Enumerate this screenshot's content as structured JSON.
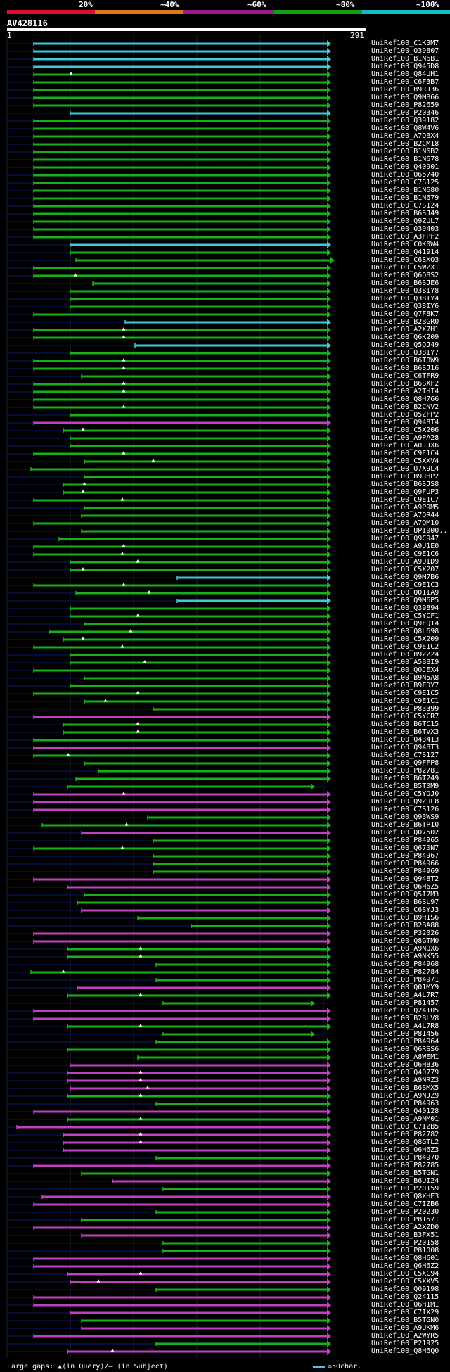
{
  "legend": {
    "colors": [
      "#e0102a",
      "#e07a10",
      "#9c1a8a",
      "#10a010",
      "#10c0c0"
    ],
    "labels": [
      "20%",
      "~40%",
      "~60%",
      "~80%",
      "~100%"
    ]
  },
  "query": {
    "id": "AV428116",
    "start": "1",
    "end": "291"
  },
  "footer": {
    "gaps": "Large gaps: ▲(in Query)/– (in Subject)",
    "scale": "=50char."
  },
  "rows": [
    {
      "label": "UniRef100_C1K3M7",
      "c": "cyan",
      "s": 48,
      "e": 465
    },
    {
      "label": "UniRef100_Q39807",
      "c": "cyan",
      "s": 48,
      "e": 465
    },
    {
      "label": "UniRef100_B1N6B1",
      "c": "cyan",
      "s": 48,
      "e": 465
    },
    {
      "label": "UniRef100_Q945D8",
      "c": "cyan",
      "s": 48,
      "e": 465
    },
    {
      "label": "UniRef100_Q84UH1",
      "c": "green",
      "s": 48,
      "e": 465,
      "t": 101
    },
    {
      "label": "UniRef100_C6F3B7",
      "c": "green",
      "s": 48,
      "e": 465
    },
    {
      "label": "UniRef100_B9RJ36",
      "c": "green",
      "s": 48,
      "e": 465
    },
    {
      "label": "UniRef100_Q9MB66",
      "c": "green",
      "s": 48,
      "e": 465
    },
    {
      "label": "UniRef100_P82659",
      "c": "green",
      "s": 48,
      "e": 465
    },
    {
      "label": "UniRef100_P20346",
      "c": "cyan",
      "s": 100,
      "e": 465
    },
    {
      "label": "UniRef100_Q39182",
      "c": "green",
      "s": 48,
      "e": 465
    },
    {
      "label": "UniRef100_Q8W4V6",
      "c": "green",
      "s": 48,
      "e": 465
    },
    {
      "label": "UniRef100_A7QBX4",
      "c": "green",
      "s": 48,
      "e": 465
    },
    {
      "label": "UniRef100_B2CM18",
      "c": "green",
      "s": 48,
      "e": 465
    },
    {
      "label": "UniRef100_B1N6B2",
      "c": "green",
      "s": 48,
      "e": 465
    },
    {
      "label": "UniRef100_B1N678",
      "c": "green",
      "s": 48,
      "e": 465
    },
    {
      "label": "UniRef100_Q40901",
      "c": "green",
      "s": 48,
      "e": 465
    },
    {
      "label": "UniRef100_O65740",
      "c": "green",
      "s": 48,
      "e": 465
    },
    {
      "label": "UniRef100_C7S125",
      "c": "green",
      "s": 48,
      "e": 465
    },
    {
      "label": "UniRef100_B1N680",
      "c": "green",
      "s": 48,
      "e": 465
    },
    {
      "label": "UniRef100_B1N679",
      "c": "green",
      "s": 48,
      "e": 465
    },
    {
      "label": "UniRef100_C7S124",
      "c": "green",
      "s": 48,
      "e": 465
    },
    {
      "label": "UniRef100_B6SJ49",
      "c": "green",
      "s": 48,
      "e": 465
    },
    {
      "label": "UniRef100_Q9ZUL7",
      "c": "green",
      "s": 48,
      "e": 465
    },
    {
      "label": "UniRef100_Q39403",
      "c": "green",
      "s": 48,
      "e": 465
    },
    {
      "label": "UniRef100_A3FPF2",
      "c": "green",
      "s": 48,
      "e": 465
    },
    {
      "label": "UniRef100_C0K0W4",
      "c": "cyan",
      "s": 100,
      "e": 465
    },
    {
      "label": "UniRef100_Q41914",
      "c": "green",
      "s": 100,
      "e": 465
    },
    {
      "label": "UniRef100_C6SXQ3",
      "c": "green",
      "s": 108,
      "e": 470
    },
    {
      "label": "UniRef100_C5WZX1",
      "c": "green",
      "s": 48,
      "e": 465
    },
    {
      "label": "UniRef100_Q6Q8S2",
      "c": "green",
      "s": 48,
      "e": 465,
      "t": 107
    },
    {
      "label": "UniRef100_B6SJE6",
      "c": "green",
      "s": 132,
      "e": 465
    },
    {
      "label": "UniRef100_Q38IY8",
      "c": "green",
      "s": 100,
      "e": 465
    },
    {
      "label": "UniRef100_Q38IY4",
      "c": "green",
      "s": 100,
      "e": 465
    },
    {
      "label": "UniRef100_Q38IY6",
      "c": "green",
      "s": 100,
      "e": 465
    },
    {
      "label": "UniRef100_Q7F8K7",
      "c": "green",
      "s": 48,
      "e": 465
    },
    {
      "label": "UniRef100_B2BGR0",
      "c": "cyan",
      "s": 178,
      "e": 465
    },
    {
      "label": "UniRef100_A2X7H1",
      "c": "green",
      "s": 48,
      "e": 465,
      "t": 176
    },
    {
      "label": "UniRef100_Q6K209",
      "c": "green",
      "s": 48,
      "e": 465,
      "t": 176
    },
    {
      "label": "UniRef100_Q5QJ49",
      "c": "cyan",
      "s": 192,
      "e": 465
    },
    {
      "label": "UniRef100_Q38IY7",
      "c": "green",
      "s": 100,
      "e": 465
    },
    {
      "label": "UniRef100_B6T0W9",
      "c": "green",
      "s": 48,
      "e": 465,
      "t": 176
    },
    {
      "label": "UniRef100_B6SJ16",
      "c": "green",
      "s": 48,
      "e": 465,
      "t": 176
    },
    {
      "label": "UniRef100_C6TFR9",
      "c": "green",
      "s": 116,
      "e": 465
    },
    {
      "label": "UniRef100_B6SXF2",
      "c": "green",
      "s": 48,
      "e": 465,
      "t": 176
    },
    {
      "label": "UniRef100_A2THI4",
      "c": "green",
      "s": 48,
      "e": 465,
      "t": 176
    },
    {
      "label": "UniRef100_Q8H766",
      "c": "green",
      "s": 48,
      "e": 465
    },
    {
      "label": "UniRef100_B2CNV2",
      "c": "green",
      "s": 48,
      "e": 465,
      "t": 176
    },
    {
      "label": "UniRef100_Q5ZFP2",
      "c": "green",
      "s": 100,
      "e": 465
    },
    {
      "label": "UniRef100_Q948T4",
      "c": "magenta",
      "s": 48,
      "e": 465
    },
    {
      "label": "UniRef100_C5X206",
      "c": "green",
      "s": 90,
      "e": 465,
      "t": 118
    },
    {
      "label": "UniRef100_A9PA28",
      "c": "green",
      "s": 100,
      "e": 465
    },
    {
      "label": "UniRef100_A0JJX6",
      "c": "green",
      "s": 100,
      "e": 465
    },
    {
      "label": "UniRef100_C9E1C4",
      "c": "green",
      "s": 48,
      "e": 465,
      "t": 176
    },
    {
      "label": "UniRef100_C5XXV4",
      "c": "green",
      "s": 120,
      "e": 465,
      "t": 218
    },
    {
      "label": "UniRef100_Q7X9L4",
      "c": "green",
      "s": 44,
      "e": 465
    },
    {
      "label": "UniRef100_B9RHP2",
      "c": "green",
      "s": 120,
      "e": 465
    },
    {
      "label": "UniRef100_B6SJS8",
      "c": "green",
      "s": 90,
      "e": 465,
      "t": 120
    },
    {
      "label": "UniRef100_Q9FUP3",
      "c": "green",
      "s": 90,
      "e": 465,
      "t": 118
    },
    {
      "label": "UniRef100_C9E1C7",
      "c": "green",
      "s": 48,
      "e": 465,
      "t": 174
    },
    {
      "label": "UniRef100_A9P9M5",
      "c": "green",
      "s": 120,
      "e": 465
    },
    {
      "label": "UniRef100_A7QR44",
      "c": "green",
      "s": 116,
      "e": 465
    },
    {
      "label": "UniRef100_A7QM10",
      "c": "green",
      "s": 48,
      "e": 465
    },
    {
      "label": "UniRef100_UPI000..",
      "c": "green",
      "s": 116,
      "e": 465
    },
    {
      "label": "UniRef100_Q9C947",
      "c": "green",
      "s": 84,
      "e": 465
    },
    {
      "label": "UniRef100_A9U1E0",
      "c": "green",
      "s": 48,
      "e": 465,
      "t": 176
    },
    {
      "label": "UniRef100_C9E1C6",
      "c": "green",
      "s": 48,
      "e": 465,
      "t": 174
    },
    {
      "label": "UniRef100_A9UID9",
      "c": "green",
      "s": 100,
      "e": 465,
      "t": 196
    },
    {
      "label": "UniRef100_C5X207",
      "c": "green",
      "s": 100,
      "e": 465,
      "t": 118
    },
    {
      "label": "UniRef100_Q9M7B6",
      "c": "cyan",
      "s": 252,
      "e": 465
    },
    {
      "label": "UniRef100_C9E1C3",
      "c": "green",
      "s": 48,
      "e": 465,
      "t": 176
    },
    {
      "label": "UniRef100_Q01IA9",
      "c": "green",
      "s": 108,
      "e": 465,
      "t": 212
    },
    {
      "label": "UniRef100_Q9M6P5",
      "c": "cyan",
      "s": 252,
      "e": 465
    },
    {
      "label": "UniRef100_Q39894",
      "c": "green",
      "s": 100,
      "e": 465
    },
    {
      "label": "UniRef100_C5YCF1",
      "c": "green",
      "s": 100,
      "e": 465,
      "t": 196
    },
    {
      "label": "UniRef100_Q9FQ14",
      "c": "green",
      "s": 120,
      "e": 465
    },
    {
      "label": "UniRef100_Q8L698",
      "c": "green",
      "s": 70,
      "e": 465,
      "t": 186
    },
    {
      "label": "UniRef100_C5X209",
      "c": "green",
      "s": 90,
      "e": 465,
      "t": 118
    },
    {
      "label": "UniRef100_C9E1C2",
      "c": "green",
      "s": 48,
      "e": 465,
      "t": 174
    },
    {
      "label": "UniRef100_B9ZZ24",
      "c": "green",
      "s": 100,
      "e": 465
    },
    {
      "label": "UniRef100_A5BBI9",
      "c": "green",
      "s": 100,
      "e": 465,
      "t": 206
    },
    {
      "label": "UniRef100_Q0JEX4",
      "c": "green",
      "s": 48,
      "e": 465
    },
    {
      "label": "UniRef100_B9N5A8",
      "c": "green",
      "s": 120,
      "e": 465
    },
    {
      "label": "UniRef100_B9FDY7",
      "c": "green",
      "s": 100,
      "e": 465
    },
    {
      "label": "UniRef100_C9E1C5",
      "c": "green",
      "s": 48,
      "e": 465,
      "t": 196
    },
    {
      "label": "UniRef100_C9E1C1",
      "c": "green",
      "s": 120,
      "e": 465,
      "t": 150
    },
    {
      "label": "UniRef100_P83399",
      "c": "green",
      "s": 218,
      "e": 465
    },
    {
      "label": "UniRef100_C5YCR7",
      "c": "magenta",
      "s": 48,
      "e": 465
    },
    {
      "label": "UniRef100_B6TC15",
      "c": "green",
      "s": 90,
      "e": 465,
      "t": 196
    },
    {
      "label": "UniRef100_B6TVX3",
      "c": "green",
      "s": 90,
      "e": 465,
      "t": 196
    },
    {
      "label": "UniRef100_Q43413",
      "c": "green",
      "s": 48,
      "e": 465
    },
    {
      "label": "UniRef100_Q948T3",
      "c": "magenta",
      "s": 48,
      "e": 465
    },
    {
      "label": "UniRef100_C7S127",
      "c": "green",
      "s": 48,
      "e": 465,
      "t": 97
    },
    {
      "label": "UniRef100_Q9FFP8",
      "c": "green",
      "s": 120,
      "e": 465
    },
    {
      "label": "UniRef100_P82781",
      "c": "green",
      "s": 140,
      "e": 465
    },
    {
      "label": "UniRef100_B6T249",
      "c": "green",
      "s": 108,
      "e": 465
    },
    {
      "label": "UniRef100_B5T0M9",
      "c": "green",
      "s": 96,
      "e": 442
    },
    {
      "label": "UniRef100_C5YQJ0",
      "c": "magenta",
      "s": 48,
      "e": 465,
      "t": 176
    },
    {
      "label": "UniRef100_Q9ZUL8",
      "c": "magenta",
      "s": 48,
      "e": 465
    },
    {
      "label": "UniRef100_C7S126",
      "c": "magenta",
      "s": 48,
      "e": 465
    },
    {
      "label": "UniRef100_Q93WS9",
      "c": "green",
      "s": 210,
      "e": 465
    },
    {
      "label": "UniRef100_B6TP10",
      "c": "green",
      "s": 60,
      "e": 465,
      "t": 180
    },
    {
      "label": "UniRef100_Q07502",
      "c": "magenta",
      "s": 116,
      "e": 465
    },
    {
      "label": "UniRef100_P84965",
      "c": "green",
      "s": 218,
      "e": 465
    },
    {
      "label": "UniRef100_Q670N7",
      "c": "green",
      "s": 48,
      "e": 465,
      "t": 174
    },
    {
      "label": "UniRef100_P84967",
      "c": "green",
      "s": 218,
      "e": 465
    },
    {
      "label": "UniRef100_P84966",
      "c": "green",
      "s": 218,
      "e": 465
    },
    {
      "label": "UniRef100_P84969",
      "c": "green",
      "s": 218,
      "e": 465
    },
    {
      "label": "UniRef100_Q948T2",
      "c": "magenta",
      "s": 48,
      "e": 465
    },
    {
      "label": "UniRef100_Q6H6Z5",
      "c": "magenta",
      "s": 96,
      "e": 465
    },
    {
      "label": "UniRef100_Q5I7M3",
      "c": "green",
      "s": 120,
      "e": 465
    },
    {
      "label": "UniRef100_B6SL97",
      "c": "green",
      "s": 110,
      "e": 465
    },
    {
      "label": "UniRef100_C6SYJ3",
      "c": "magenta",
      "s": 116,
      "e": 465
    },
    {
      "label": "UniRef100_B9H1S6",
      "c": "green",
      "s": 196,
      "e": 465
    },
    {
      "label": "UniRef100_B2BA88",
      "c": "green",
      "s": 272,
      "e": 465
    },
    {
      "label": "UniRef100_P32026",
      "c": "magenta",
      "s": 48,
      "e": 465
    },
    {
      "label": "UniRef100_Q8GTM0",
      "c": "magenta",
      "s": 48,
      "e": 465
    },
    {
      "label": "UniRef100_A9NQX6",
      "c": "green",
      "s": 96,
      "e": 465,
      "t": 200
    },
    {
      "label": "UniRef100_A9NK55",
      "c": "green",
      "s": 96,
      "e": 465,
      "t": 200
    },
    {
      "label": "UniRef100_P84968",
      "c": "green",
      "s": 222,
      "e": 465
    },
    {
      "label": "UniRef100_P82784",
      "c": "green",
      "s": 44,
      "e": 465,
      "t": 90
    },
    {
      "label": "UniRef100_P84971",
      "c": "green",
      "s": 222,
      "e": 465
    },
    {
      "label": "UniRef100_Q01MY9",
      "c": "magenta",
      "s": 110,
      "e": 465
    },
    {
      "label": "UniRef100_A4L7R7",
      "c": "green",
      "s": 96,
      "e": 465,
      "t": 200
    },
    {
      "label": "UniRef100_P81457",
      "c": "green",
      "s": 232,
      "e": 442
    },
    {
      "label": "UniRef100_Q24105",
      "c": "magenta",
      "s": 48,
      "e": 465
    },
    {
      "label": "UniRef100_B2BLV8",
      "c": "magenta",
      "s": 48,
      "e": 465
    },
    {
      "label": "UniRef100_A4L7R8",
      "c": "green",
      "s": 96,
      "e": 465,
      "t": 200
    },
    {
      "label": "UniRef100_P81456",
      "c": "green",
      "s": 232,
      "e": 442
    },
    {
      "label": "UniRef100_P84964",
      "c": "green",
      "s": 222,
      "e": 465
    },
    {
      "label": "UniRef100_Q6RSS6",
      "c": "green",
      "s": 96,
      "e": 465
    },
    {
      "label": "UniRef100_A8WEM1",
      "c": "green",
      "s": 196,
      "e": 465
    },
    {
      "label": "UniRef100_Q6H836",
      "c": "magenta",
      "s": 100,
      "e": 465
    },
    {
      "label": "UniRef100_Q40779",
      "c": "magenta",
      "s": 96,
      "e": 465,
      "t": 200
    },
    {
      "label": "UniRef100_A9NRZ3",
      "c": "magenta",
      "s": 96,
      "e": 465,
      "t": 200
    },
    {
      "label": "UniRef100_B6SMX5",
      "c": "magenta",
      "s": 100,
      "e": 465,
      "t": 210
    },
    {
      "label": "UniRef100_A9NJZ9",
      "c": "green",
      "s": 96,
      "e": 465,
      "t": 200
    },
    {
      "label": "UniRef100_P84963",
      "c": "green",
      "s": 222,
      "e": 465
    },
    {
      "label": "UniRef100_Q40128",
      "c": "magenta",
      "s": 48,
      "e": 465
    },
    {
      "label": "UniRef100_A9NM01",
      "c": "green",
      "s": 96,
      "e": 465,
      "t": 200
    },
    {
      "label": "UniRef100_C7IZB5",
      "c": "magenta",
      "s": 24,
      "e": 465
    },
    {
      "label": "UniRef100_P82782",
      "c": "magenta",
      "s": 90,
      "e": 465,
      "t": 200
    },
    {
      "label": "UniRef100_Q8GTL2",
      "c": "magenta",
      "s": 90,
      "e": 465,
      "t": 200
    },
    {
      "label": "UniRef100_Q6H6Z3",
      "c": "magenta",
      "s": 90,
      "e": 465
    },
    {
      "label": "UniRef100_P84970",
      "c": "green",
      "s": 222,
      "e": 465
    },
    {
      "label": "UniRef100_P82785",
      "c": "magenta",
      "s": 48,
      "e": 465
    },
    {
      "label": "UniRef100_B5TGN1",
      "c": "green",
      "s": 116,
      "e": 465
    },
    {
      "label": "UniRef100_B6UI24",
      "c": "magenta",
      "s": 160,
      "e": 465
    },
    {
      "label": "UniRef100_P20159",
      "c": "green",
      "s": 232,
      "e": 465
    },
    {
      "label": "UniRef100_Q8XHE3",
      "c": "magenta",
      "s": 60,
      "e": 465
    },
    {
      "label": "UniRef100_C7IZB6",
      "c": "magenta",
      "s": 48,
      "e": 465
    },
    {
      "label": "UniRef100_P20230",
      "c": "green",
      "s": 222,
      "e": 465
    },
    {
      "label": "UniRef100_P81571",
      "c": "green",
      "s": 116,
      "e": 465
    },
    {
      "label": "UniRef100_A2XZD0",
      "c": "magenta",
      "s": 48,
      "e": 465
    },
    {
      "label": "UniRef100_B3FX51",
      "c": "magenta",
      "s": 116,
      "e": 465
    },
    {
      "label": "UniRef100_P20158",
      "c": "green",
      "s": 232,
      "e": 465
    },
    {
      "label": "UniRef100_P81008",
      "c": "green",
      "s": 232,
      "e": 465
    },
    {
      "label": "UniRef100_Q8H601",
      "c": "magenta",
      "s": 48,
      "e": 465
    },
    {
      "label": "UniRef100_Q6H6Z2",
      "c": "magenta",
      "s": 48,
      "e": 465
    },
    {
      "label": "UniRef100_C5XC94",
      "c": "magenta",
      "s": 96,
      "e": 465,
      "t": 200
    },
    {
      "label": "UniRef100_C5XXV5",
      "c": "magenta",
      "s": 100,
      "e": 465,
      "t": 140
    },
    {
      "label": "UniRef100_Q09198",
      "c": "green",
      "s": 222,
      "e": 465
    },
    {
      "label": "UniRef100_Q24115",
      "c": "magenta",
      "s": 48,
      "e": 465
    },
    {
      "label": "UniRef100_Q6H1M1",
      "c": "magenta",
      "s": 48,
      "e": 465
    },
    {
      "label": "UniRef100_C7IX29",
      "c": "magenta",
      "s": 100,
      "e": 465
    },
    {
      "label": "UniRef100_B5TGN0",
      "c": "green",
      "s": 116,
      "e": 465
    },
    {
      "label": "UniRef100_A9UKM6",
      "c": "magenta",
      "s": 116,
      "e": 465
    },
    {
      "label": "UniRef100_A2WYR5",
      "c": "magenta",
      "s": 48,
      "e": 465
    },
    {
      "label": "UniRef100_P21925",
      "c": "green",
      "s": 222,
      "e": 465
    },
    {
      "label": "UniRef100_Q8H6Q0",
      "c": "magenta",
      "s": 96,
      "e": 465,
      "t": 160
    }
  ]
}
